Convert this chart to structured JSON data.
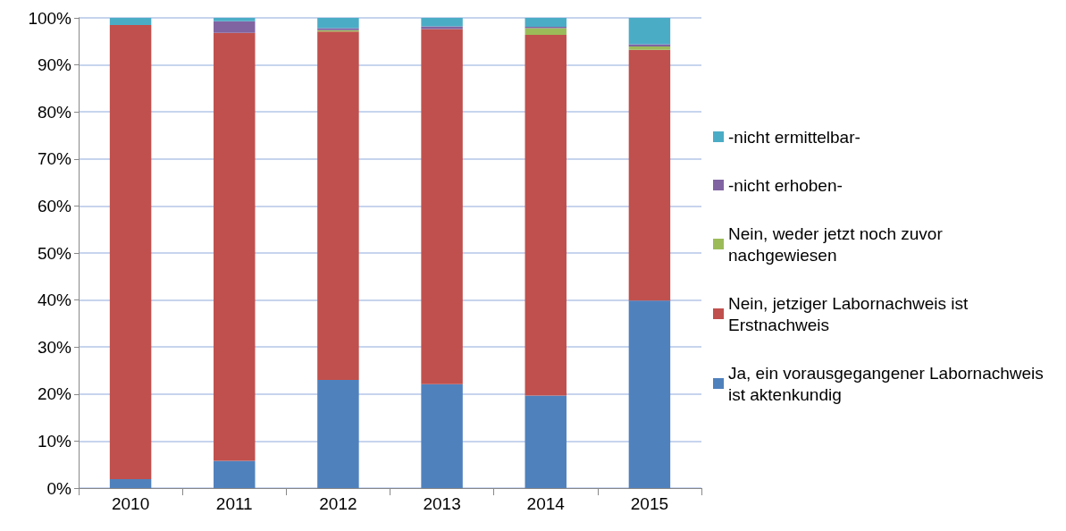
{
  "chart_data": {
    "type": "bar",
    "stacked": true,
    "categories": [
      "2010",
      "2011",
      "2012",
      "2013",
      "2014",
      "2015"
    ],
    "series": [
      {
        "name": "Ja, ein vorausgegangener Labornachweis ist aktenkundig",
        "color": "#4f81bd",
        "values": [
          1.9,
          5.8,
          23.0,
          22.1,
          19.7,
          39.9
        ]
      },
      {
        "name": "Nein, jetziger Labornachweis ist Erstnachweis",
        "color": "#c0504d",
        "values": [
          96.6,
          91.0,
          74.1,
          75.5,
          76.7,
          53.3
        ]
      },
      {
        "name": "Nein, weder jetzt noch zuvor nachgewiesen",
        "color": "#9bbb59",
        "values": [
          0,
          0,
          0.3,
          0,
          1.4,
          0.7
        ]
      },
      {
        "name": "-nicht erhoben-",
        "color": "#8064a2",
        "values": [
          0,
          2.5,
          0.4,
          0.6,
          0.3,
          0.5
        ]
      },
      {
        "name": "-nicht ermittelbar-",
        "color": "#4bacc6",
        "values": [
          1.5,
          0.7,
          2.2,
          1.8,
          1.9,
          5.6
        ]
      }
    ],
    "ylim": [
      0,
      100
    ],
    "yticks": [
      {
        "value": 0,
        "label": "0%"
      },
      {
        "value": 10,
        "label": "10%"
      },
      {
        "value": 20,
        "label": "20%"
      },
      {
        "value": 30,
        "label": "30%"
      },
      {
        "value": 40,
        "label": "40%"
      },
      {
        "value": 50,
        "label": "50%"
      },
      {
        "value": 60,
        "label": "60%"
      },
      {
        "value": 70,
        "label": "70%"
      },
      {
        "value": 80,
        "label": "80%"
      },
      {
        "value": 90,
        "label": "90%"
      },
      {
        "value": 100,
        "label": "100%"
      }
    ],
    "grid": "y",
    "legend": "right"
  }
}
